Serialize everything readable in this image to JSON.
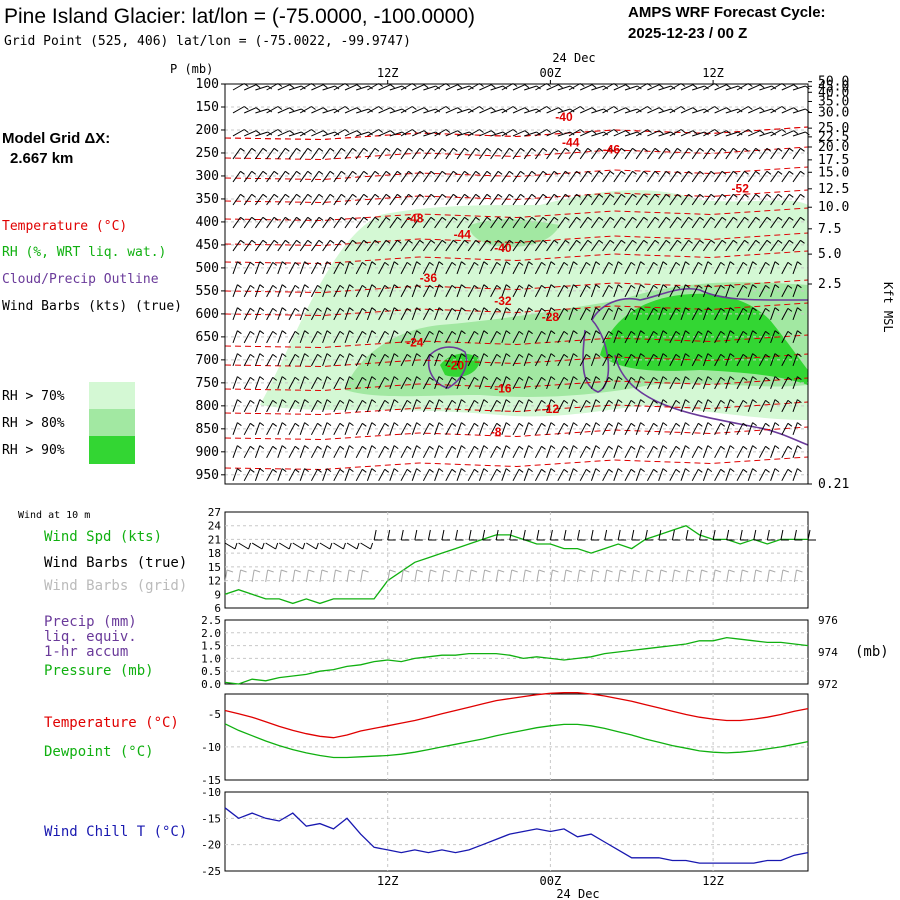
{
  "header": {
    "title": "Pine Island Glacier:  lat/lon = (-75.0000, -100.0000)",
    "grid_point": "Grid Point (525, 406) lat/lon = (-75.0022, -99.9747)",
    "forecast_line1": "AMPS WRF Forecast Cycle:",
    "forecast_line2": "2025-12-23 / 00  Z"
  },
  "model_grid": {
    "line1": "Model Grid ΔX:",
    "line2": "2.667 km"
  },
  "legend": {
    "temperature": "Temperature (°C)",
    "rh": "RH (%, WRT liq. wat.)",
    "cloud": "Cloud/Precip Outline",
    "wind": "Wind Barbs (kts) (true)",
    "rh70": "RH > 70%",
    "rh80": "RH > 80%",
    "rh90": "RH > 90%"
  },
  "colors": {
    "temperature": "#e00000",
    "rh": "#10b010",
    "cloud": "#6a3a9a",
    "windchill": "#1818b0",
    "rh70": "#d4f8d4",
    "rh80": "#a2e8a2",
    "rh90": "#33d633"
  },
  "time_axis": {
    "date_label": "24 Dec",
    "ticks": [
      {
        "label": "12Z",
        "hour": 12
      },
      {
        "label": "00Z",
        "hour": 24
      },
      {
        "label": "12Z",
        "hour": 36
      }
    ],
    "hour_min": 0,
    "hour_max": 43
  },
  "chart_data": [
    {
      "type": "heatmap",
      "ylabel": "P (mb)",
      "y_right_label": "Kft MSL",
      "pressure_ticks": [
        "100",
        "150",
        "200",
        "250",
        "300",
        "350",
        "400",
        "450",
        "500",
        "550",
        "600",
        "650",
        "700",
        "750",
        "800",
        "850",
        "900",
        "950"
      ],
      "height_ticks": [
        "50.0",
        "45.0",
        "40.0",
        "35.0",
        "30.0",
        "25.0",
        "22.5",
        "20.0",
        "17.5",
        "15.0",
        "12.5",
        "10.0",
        "7.5",
        "5.0",
        "2.5",
        "0.21"
      ],
      "height_tick_pressures": [
        95,
        105,
        118,
        138,
        162,
        196,
        215,
        237,
        265,
        292,
        328,
        368,
        415,
        470,
        535,
        625
      ],
      "ylim": [
        100,
        970
      ],
      "temperature_labels": [
        {
          "t": "-40",
          "hour": 25,
          "p": 170
        },
        {
          "t": "-44",
          "hour": 25.5,
          "p": 225
        },
        {
          "t": "-46",
          "hour": 28.5,
          "p": 240
        },
        {
          "t": "-52",
          "hour": 38,
          "p": 325
        },
        {
          "t": "-48",
          "hour": 14,
          "p": 390
        },
        {
          "t": "-44",
          "hour": 17.5,
          "p": 425
        },
        {
          "t": "-40",
          "hour": 20.5,
          "p": 455
        },
        {
          "t": "-36",
          "hour": 15,
          "p": 520
        },
        {
          "t": "-32",
          "hour": 20.5,
          "p": 570
        },
        {
          "t": "-28",
          "hour": 24,
          "p": 605
        },
        {
          "t": "-24",
          "hour": 14,
          "p": 660
        },
        {
          "t": "-20",
          "hour": 17,
          "p": 710
        },
        {
          "t": "-16",
          "hour": 20.5,
          "p": 760
        },
        {
          "t": "-12",
          "hour": 24,
          "p": 805
        },
        {
          "t": "-8",
          "hour": 20,
          "p": 855
        }
      ]
    },
    {
      "type": "line",
      "title": "Wind at 10 m",
      "series": [
        {
          "name": "Wind Spd (kts)",
          "values": [
            9,
            10,
            9,
            8,
            8,
            7,
            8,
            7,
            8,
            8,
            8,
            8,
            12,
            14,
            16,
            17,
            18,
            19,
            20,
            21,
            22,
            22,
            21,
            20,
            20,
            19,
            19,
            18,
            19,
            20,
            19,
            21,
            22,
            23,
            24,
            22,
            21,
            21,
            20,
            21,
            20,
            21,
            21,
            21
          ]
        }
      ],
      "extra_labels": [
        "Wind Barbs (true)",
        "Wind Barbs (grid)"
      ],
      "ylim": [
        6,
        27
      ],
      "yticks": [
        "27",
        "24",
        "21",
        "18",
        "15",
        "12",
        "9",
        "6"
      ]
    },
    {
      "type": "line",
      "series": [
        {
          "name": "Pressure (mb)",
          "values": [
            972.1,
            972.0,
            972.3,
            972.2,
            972.4,
            972.5,
            972.6,
            972.8,
            972.9,
            973.1,
            973.2,
            973.4,
            973.5,
            973.4,
            973.6,
            973.7,
            973.8,
            973.8,
            973.9,
            973.9,
            973.9,
            973.8,
            973.6,
            973.7,
            973.6,
            973.5,
            973.6,
            973.7,
            973.9,
            974.0,
            974.1,
            974.2,
            974.3,
            974.4,
            974.5,
            974.7,
            974.7,
            974.9,
            974.8,
            974.7,
            974.6,
            974.6,
            974.5,
            974.4
          ]
        }
      ],
      "precip_labels": [
        "Precip (mm)",
        "liq. equiv.",
        "1-hr accum"
      ],
      "left_ticks": [
        "2.5",
        "2.0",
        "1.5",
        "1.0",
        "0.5",
        "0.0"
      ],
      "right_ticks": [
        "976",
        "974",
        "972"
      ],
      "right_unit": "(mb)",
      "ylim": [
        972,
        976
      ]
    },
    {
      "type": "line",
      "series": [
        {
          "name": "Temperature (°C)",
          "values": [
            -4.5,
            -5.0,
            -5.5,
            -6.2,
            -6.9,
            -7.5,
            -8.0,
            -8.4,
            -8.6,
            -8.2,
            -7.6,
            -7.2,
            -6.8,
            -6.4,
            -6.0,
            -5.5,
            -5.0,
            -4.5,
            -4.0,
            -3.5,
            -3.0,
            -2.7,
            -2.4,
            -2.1,
            -1.9,
            -1.8,
            -1.8,
            -2.0,
            -2.3,
            -2.7,
            -3.1,
            -3.6,
            -4.1,
            -4.6,
            -5.1,
            -5.5,
            -5.8,
            -6.0,
            -6.0,
            -5.8,
            -5.5,
            -5.1,
            -4.6,
            -4.2
          ]
        },
        {
          "name": "Dewpoint (°C)",
          "values": [
            -6.5,
            -7.5,
            -8.3,
            -9.1,
            -9.8,
            -10.4,
            -10.9,
            -11.3,
            -11.6,
            -11.6,
            -11.5,
            -11.4,
            -11.3,
            -11.1,
            -10.8,
            -10.4,
            -10.0,
            -9.6,
            -9.2,
            -8.8,
            -8.3,
            -7.9,
            -7.5,
            -7.1,
            -6.8,
            -6.6,
            -6.6,
            -6.8,
            -7.2,
            -7.7,
            -8.2,
            -8.8,
            -9.3,
            -9.8,
            -10.2,
            -10.6,
            -10.8,
            -10.9,
            -10.8,
            -10.6,
            -10.3,
            -10.0,
            -9.6,
            -9.2
          ]
        }
      ],
      "yticks": [
        "-5",
        "-10",
        "-15"
      ],
      "ylim": [
        -15,
        -2
      ]
    },
    {
      "type": "line",
      "series": [
        {
          "name": "Wind Chill T (°C)",
          "values": [
            -13,
            -15,
            -14,
            -15,
            -15.5,
            -14,
            -16.5,
            -16,
            -17,
            -15,
            -18,
            -20.5,
            -21,
            -21.5,
            -21,
            -21.5,
            -21,
            -21.5,
            -21,
            -20,
            -19,
            -18,
            -17.5,
            -17,
            -17.5,
            -17,
            -18.5,
            -18,
            -19.5,
            -21,
            -22.5,
            -22.5,
            -22.5,
            -23,
            -23,
            -23.5,
            -23.5,
            -23.5,
            -23.5,
            -23.5,
            -23,
            -23,
            -22,
            -21.5
          ]
        }
      ],
      "yticks": [
        "-10",
        "-15",
        "-20",
        "-25"
      ],
      "ylim": [
        -25,
        -10
      ]
    }
  ]
}
